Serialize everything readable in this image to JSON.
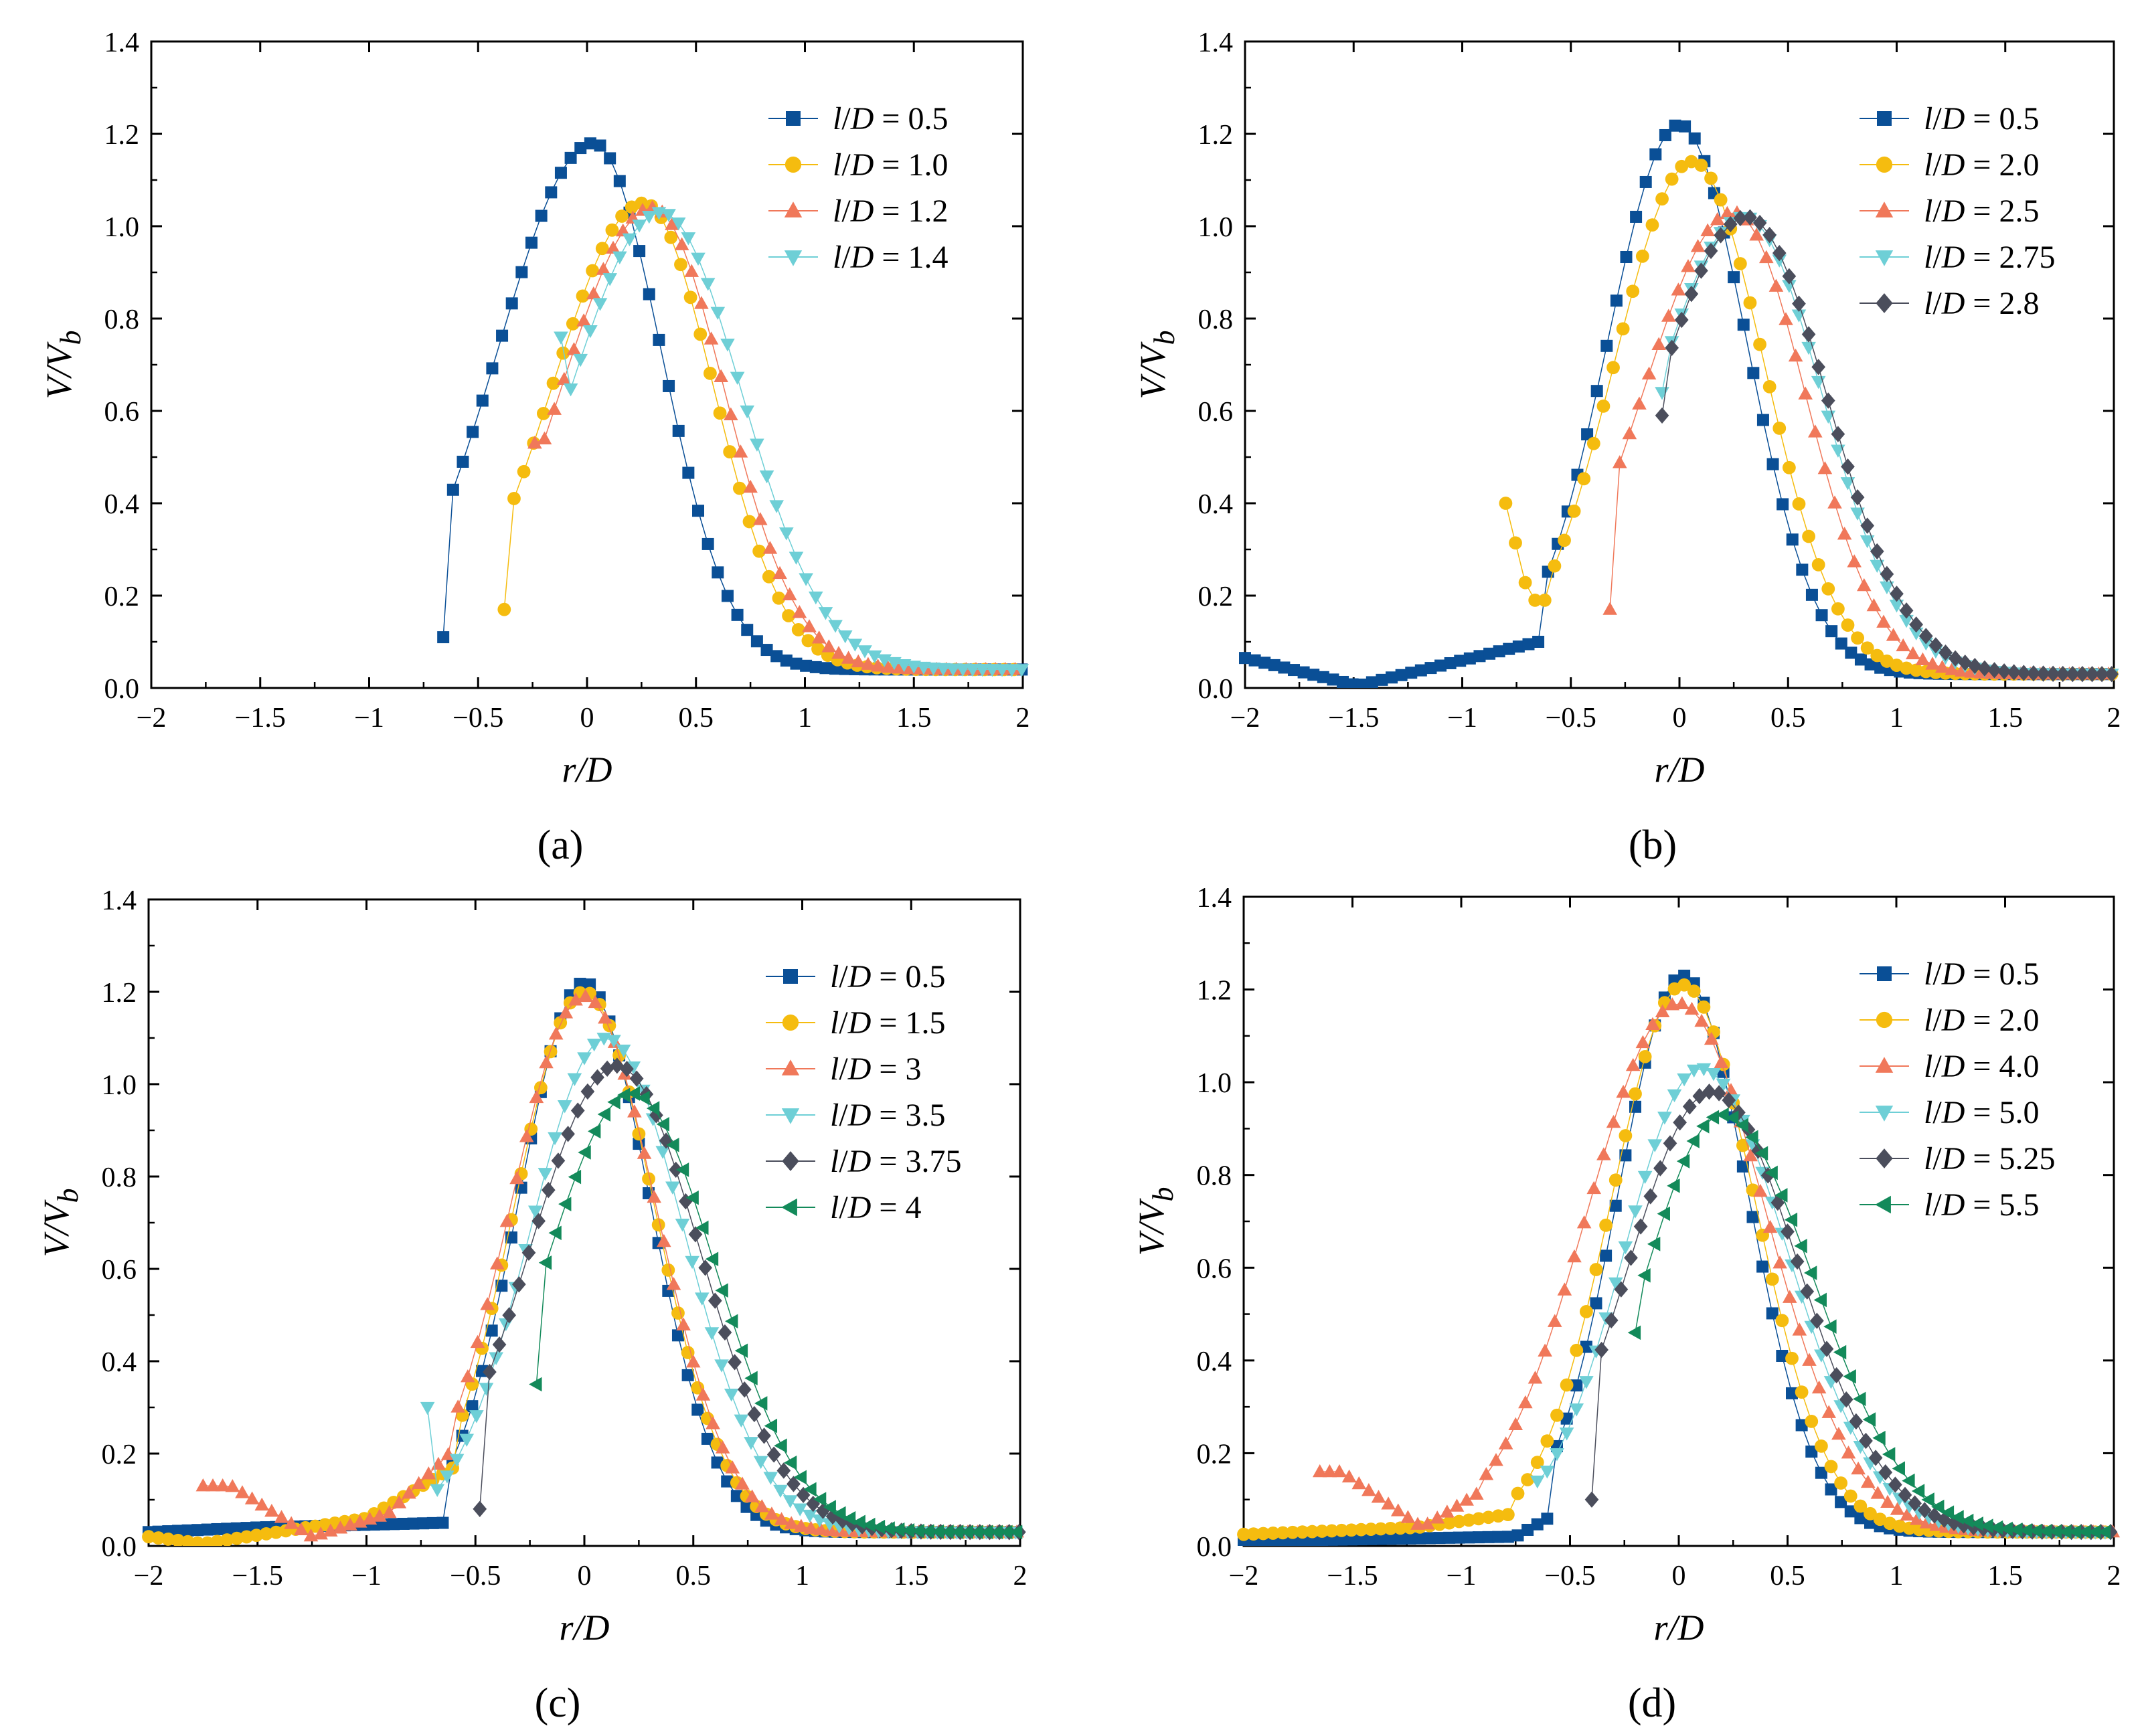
{
  "figure": {
    "panels": [
      "a",
      "b",
      "c",
      "d"
    ],
    "ylabel": "V/V",
    "ylabel_sub": "b",
    "xlabel": "r/D"
  },
  "colors": {
    "blue": "#0a4f96",
    "yellow": "#f5bc0f",
    "orange": "#f0785a",
    "cyan": "#6ecfd6",
    "gray": "#4b4e5c",
    "green": "#138a5a"
  },
  "chart_data": [
    {
      "type": "scatter",
      "panel_label": "(a)",
      "xlabel": "r/D",
      "ylabel": "V/Vb",
      "xlim": [
        -2,
        2
      ],
      "ylim": [
        0,
        1.4
      ],
      "xticks": [
        "−2",
        "−1.5",
        "−1",
        "−0.5",
        "0",
        "0.5",
        "1",
        "1.5",
        "2"
      ],
      "yticks": [
        "0.0",
        "0.2",
        "0.4",
        "0.6",
        "0.8",
        "1.0",
        "1.2",
        "1.4"
      ],
      "legend_position": "top-right",
      "series": [
        {
          "name": "l/D = 0.5",
          "ratio": "0.5",
          "marker": "square",
          "color": "blue",
          "x0": -0.66,
          "x1": 2.0,
          "peak_x": 0.03,
          "peak_y": 1.18,
          "w_left": 0.44,
          "w_right": 0.31,
          "start_y": 0.11,
          "base": 0.04,
          "step": 0.045
        },
        {
          "name": "l/D = 1.0",
          "ratio": "1.0",
          "marker": "circle",
          "color": "yellow",
          "x0": -0.38,
          "x1": 2.0,
          "peak_x": 0.26,
          "peak_y": 1.05,
          "w_left": 0.42,
          "w_right": 0.32,
          "start_y": 0.17,
          "base": 0.04,
          "step": 0.045
        },
        {
          "name": "l/D = 1.2",
          "ratio": "1.2",
          "marker": "triangle-up",
          "color": "orange",
          "x0": -0.24,
          "x1": 2.0,
          "peak_x": 0.3,
          "peak_y": 1.04,
          "w_left": 0.42,
          "w_right": 0.33,
          "start_y": 0.53,
          "base": 0.04,
          "step": 0.045
        },
        {
          "name": "l/D = 1.4",
          "ratio": "1.4",
          "marker": "triangle-down",
          "color": "cyan",
          "x0": -0.12,
          "x1": 2.0,
          "peak_x": 0.34,
          "peak_y": 1.03,
          "w_left": 0.42,
          "w_right": 0.37,
          "start_y": 0.76,
          "base": 0.04,
          "step": 0.045
        }
      ]
    },
    {
      "type": "scatter",
      "panel_label": "(b)",
      "xlabel": "r/D",
      "ylabel": "V/Vb",
      "xlim": [
        -2,
        2
      ],
      "ylim": [
        0,
        1.4
      ],
      "xticks": [
        "−2",
        "−1.5",
        "−1",
        "−0.5",
        "0",
        "0.5",
        "1",
        "1.5",
        "2"
      ],
      "yticks": [
        "0.0",
        "0.2",
        "0.4",
        "0.6",
        "0.8",
        "1.0",
        "1.2",
        "1.4"
      ],
      "legend_position": "top-right",
      "series": [
        {
          "name": "l/D = 0.5",
          "ratio": "0.5",
          "marker": "square",
          "color": "blue",
          "x0": -2.0,
          "x1": 2.0,
          "peak_x": 0.0,
          "peak_y": 1.22,
          "w_left": 0.33,
          "w_right": 0.31,
          "start_y": 0.07,
          "base": 0.03,
          "step": 0.045,
          "tail": [
            [
              -2.0,
              0.065
            ],
            [
              -1.48,
              0.005
            ],
            [
              -0.65,
              0.1
            ]
          ]
        },
        {
          "name": "l/D = 2.0",
          "ratio": "2.0",
          "marker": "circle",
          "color": "yellow",
          "x0": -0.8,
          "x1": 2.0,
          "peak_x": 0.06,
          "peak_y": 1.14,
          "w_left": 0.36,
          "w_right": 0.33,
          "start_y": 0.4,
          "base": 0.03,
          "step": 0.045,
          "tail": [
            [
              -0.8,
              0.4
            ],
            [
              -0.69,
              0.19
            ],
            [
              -0.6,
              0.19
            ]
          ]
        },
        {
          "name": "l/D = 2.5",
          "ratio": "2.5",
          "marker": "triangle-up",
          "color": "orange",
          "x0": -0.32,
          "x1": 2.0,
          "peak_x": 0.25,
          "peak_y": 1.03,
          "w_left": 0.42,
          "w_right": 0.33,
          "start_y": 0.17,
          "base": 0.03,
          "step": 0.045
        },
        {
          "name": "l/D = 2.75",
          "ratio": "2.75",
          "marker": "triangle-down",
          "color": "cyan",
          "x0": -0.08,
          "x1": 2.0,
          "peak_x": 0.3,
          "peak_y": 1.02,
          "w_left": 0.42,
          "w_right": 0.36,
          "start_y": 0.64,
          "base": 0.03,
          "step": 0.045
        },
        {
          "name": "l/D = 2.8",
          "ratio": "2.8",
          "marker": "diamond",
          "color": "gray",
          "x0": -0.08,
          "x1": 2.0,
          "peak_x": 0.31,
          "peak_y": 1.02,
          "w_left": 0.42,
          "w_right": 0.37,
          "start_y": 0.59,
          "base": 0.03,
          "step": 0.045
        }
      ]
    },
    {
      "type": "scatter",
      "panel_label": "(c)",
      "xlabel": "r/D",
      "ylabel": "V/Vb",
      "xlim": [
        -2,
        2
      ],
      "ylim": [
        0,
        1.4
      ],
      "xticks": [
        "−2",
        "−1.5",
        "−1",
        "−0.5",
        "0",
        "0.5",
        "1",
        "1.5",
        "2"
      ],
      "yticks": [
        "0.0",
        "0.2",
        "0.4",
        "0.6",
        "0.8",
        "1.0",
        "1.2",
        "1.4"
      ],
      "legend_position": "top-right",
      "series": [
        {
          "name": "l/D = 0.5",
          "ratio": "0.5",
          "marker": "square",
          "color": "blue",
          "x0": -2.0,
          "x1": 2.0,
          "peak_x": 0.0,
          "peak_y": 1.22,
          "w_left": 0.3,
          "w_right": 0.3,
          "start_y": 0.03,
          "base": 0.03,
          "step": 0.045,
          "tail": [
            [
              -2.0,
              0.03
            ],
            [
              -1.5,
              0.04
            ],
            [
              -0.65,
              0.05
            ]
          ]
        },
        {
          "name": "l/D = 1.5",
          "ratio": "1.5",
          "marker": "circle",
          "color": "yellow",
          "x0": -2.0,
          "x1": 2.0,
          "peak_x": 0.0,
          "peak_y": 1.2,
          "w_left": 0.32,
          "w_right": 0.32,
          "start_y": 0.02,
          "base": 0.03,
          "step": 0.045,
          "tail": [
            [
              -2.0,
              0.02
            ],
            [
              -1.75,
              0.005
            ],
            [
              -1.0,
              0.06
            ],
            [
              -0.6,
              0.17
            ]
          ]
        },
        {
          "name": "l/D = 3",
          "ratio": "3",
          "marker": "triangle-up",
          "color": "orange",
          "x0": -1.75,
          "x1": 2.0,
          "peak_x": 0.0,
          "peak_y": 1.19,
          "w_left": 0.34,
          "w_right": 0.33,
          "start_y": 0.13,
          "base": 0.03,
          "step": 0.045,
          "tail": [
            [
              -1.75,
              0.13
            ],
            [
              -1.62,
              0.13
            ],
            [
              -1.25,
              0.02
            ],
            [
              -0.9,
              0.07
            ],
            [
              -0.62,
              0.2
            ]
          ]
        },
        {
          "name": "l/D = 3.5",
          "ratio": "3.5",
          "marker": "triangle-down",
          "color": "cyan",
          "x0": -0.72,
          "x1": 2.0,
          "peak_x": 0.1,
          "peak_y": 1.1,
          "w_left": 0.35,
          "w_right": 0.36,
          "start_y": 0.3,
          "base": 0.03,
          "step": 0.045
        },
        {
          "name": "l/D = 3.75",
          "ratio": "3.75",
          "marker": "diamond",
          "color": "gray",
          "x0": -0.48,
          "x1": 2.0,
          "peak_x": 0.15,
          "peak_y": 1.04,
          "w_left": 0.4,
          "w_right": 0.38,
          "start_y": 0.08,
          "base": 0.03,
          "step": 0.045
        },
        {
          "name": "l/D = 4",
          "ratio": "4",
          "marker": "triangle-left",
          "color": "green",
          "x0": -0.22,
          "x1": 2.0,
          "peak_x": 0.22,
          "peak_y": 0.98,
          "w_left": 0.4,
          "w_right": 0.38,
          "start_y": 0.35,
          "base": 0.03,
          "step": 0.045
        }
      ]
    },
    {
      "type": "scatter",
      "panel_label": "(d)",
      "xlabel": "r/D",
      "ylabel": "V/Vb",
      "xlim": [
        -2,
        2
      ],
      "ylim": [
        0,
        1.4
      ],
      "xticks": [
        "−2",
        "−1.5",
        "−1",
        "−0.5",
        "0",
        "0.5",
        "1",
        "1.5",
        "2"
      ],
      "yticks": [
        "0.0",
        "0.2",
        "0.4",
        "0.6",
        "0.8",
        "1.0",
        "1.2",
        "1.4"
      ],
      "legend_position": "top-right",
      "series": [
        {
          "name": "l/D = 0.5",
          "ratio": "0.5",
          "marker": "square",
          "color": "blue",
          "x0": -2.0,
          "x1": 2.0,
          "peak_x": 0.02,
          "peak_y": 1.23,
          "w_left": 0.3,
          "w_right": 0.3,
          "start_y": 0.01,
          "base": 0.03,
          "step": 0.045,
          "tail": [
            [
              -2.0,
              0.01
            ],
            [
              -0.75,
              0.02
            ],
            [
              -0.6,
              0.06
            ]
          ]
        },
        {
          "name": "l/D = 2.0",
          "ratio": "2.0",
          "marker": "circle",
          "color": "yellow",
          "x0": -2.0,
          "x1": 2.0,
          "peak_x": 0.02,
          "peak_y": 1.21,
          "w_left": 0.33,
          "w_right": 0.33,
          "start_y": 0.025,
          "base": 0.03,
          "step": 0.045,
          "tail": [
            [
              -2.0,
              0.025
            ],
            [
              -1.2,
              0.04
            ],
            [
              -0.75,
              0.07
            ]
          ]
        },
        {
          "name": "l/D = 4.0",
          "ratio": "4.0",
          "marker": "triangle-up",
          "color": "orange",
          "x0": -1.65,
          "x1": 2.0,
          "peak_x": 0.0,
          "peak_y": 1.17,
          "w_left": 0.42,
          "w_right": 0.4,
          "start_y": 0.16,
          "base": 0.03,
          "step": 0.045,
          "tail": [
            [
              -1.65,
              0.16
            ],
            [
              -1.55,
              0.16
            ],
            [
              -1.18,
              0.04
            ],
            [
              -0.9,
              0.12
            ]
          ]
        },
        {
          "name": "l/D = 5.0",
          "ratio": "5.0",
          "marker": "triangle-down",
          "color": "cyan",
          "x0": -0.65,
          "x1": 2.0,
          "peak_x": 0.1,
          "peak_y": 1.03,
          "w_left": 0.35,
          "w_right": 0.4,
          "start_y": 0.14,
          "base": 0.03,
          "step": 0.045
        },
        {
          "name": "l/D = 5.25",
          "ratio": "5.25",
          "marker": "diamond",
          "color": "gray",
          "x0": -0.4,
          "x1": 2.0,
          "peak_x": 0.15,
          "peak_y": 0.98,
          "w_left": 0.38,
          "w_right": 0.4,
          "start_y": 0.1,
          "base": 0.03,
          "step": 0.045
        },
        {
          "name": "l/D = 5.5",
          "ratio": "5.5",
          "marker": "triangle-left",
          "color": "green",
          "x0": -0.2,
          "x1": 2.0,
          "peak_x": 0.2,
          "peak_y": 0.93,
          "w_left": 0.36,
          "w_right": 0.42,
          "start_y": 0.46,
          "base": 0.03,
          "step": 0.045
        }
      ]
    }
  ]
}
